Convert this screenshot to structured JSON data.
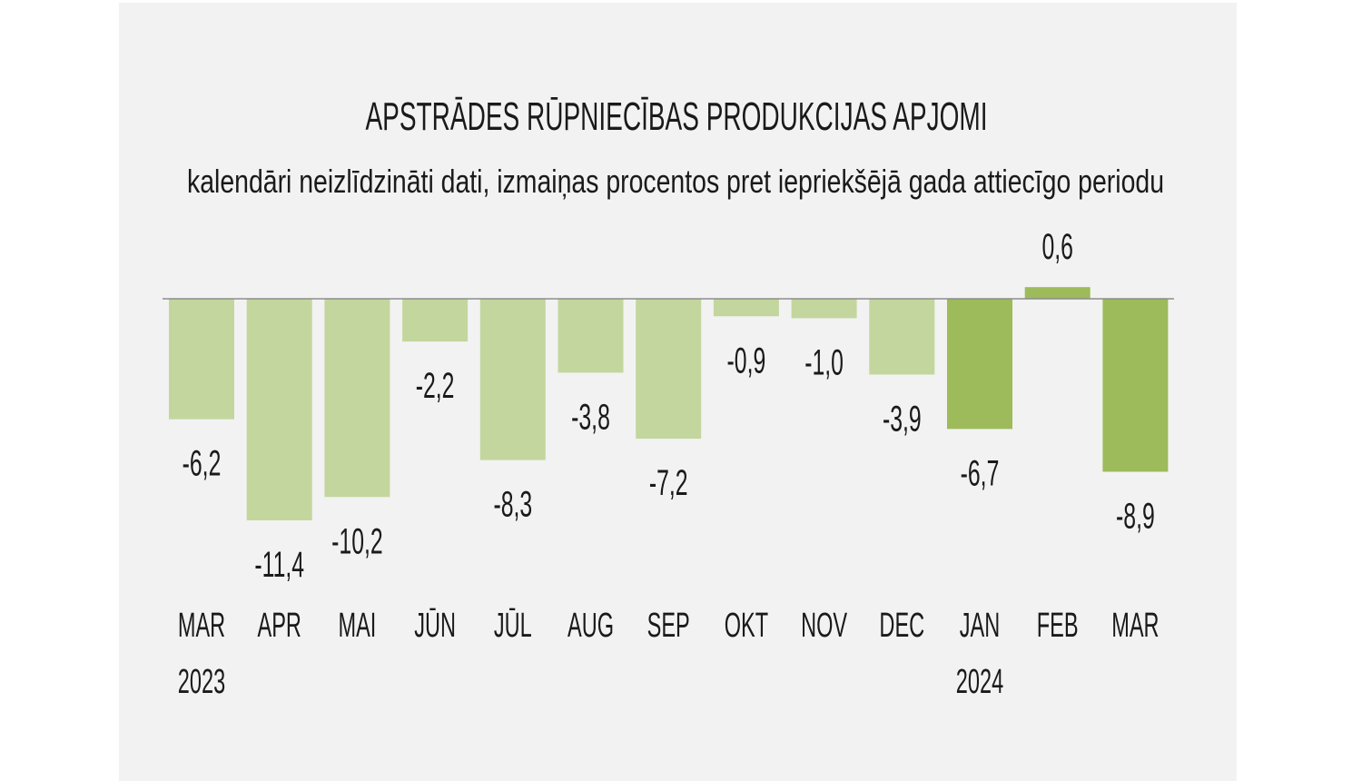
{
  "chart_data": {
    "type": "bar",
    "title": "APSTRĀDES RŪPNIECĪBAS PRODUKCIJAS APJOMI",
    "subtitle": "kalendāri neizlīdzināti dati, izmaiņas procentos pret iepriekšējā gada attiecīgo periodu",
    "categories": [
      "MAR",
      "APR",
      "MAI",
      "JŪN",
      "JŪL",
      "AUG",
      "SEP",
      "OKT",
      "NOV",
      "DEC",
      "JAN",
      "FEB",
      "MAR"
    ],
    "year_labels": [
      {
        "index": 0,
        "label": "2023"
      },
      {
        "index": 10,
        "label": "2024"
      }
    ],
    "values": [
      -6.2,
      -11.4,
      -10.2,
      -2.2,
      -8.3,
      -3.8,
      -7.2,
      -0.9,
      -1.0,
      -3.9,
      -6.7,
      0.6,
      -8.9
    ],
    "value_labels": [
      "-6,2",
      "-11,4",
      "-10,2",
      "-2,2",
      "-8,3",
      "-3,8",
      "-7,2",
      "-0,9",
      "-1,0",
      "-3,9",
      "-6,7",
      "0,6",
      "-8,9"
    ],
    "highlight_from_index": 10,
    "colors": {
      "bar": "#c3d69e",
      "bar_highlight": "#9dbb5a",
      "zero_line": "#8c8c8c",
      "background": "#f2f2f2"
    },
    "ylim": [
      -11.4,
      0.6
    ],
    "grid": false,
    "legend": "none"
  }
}
